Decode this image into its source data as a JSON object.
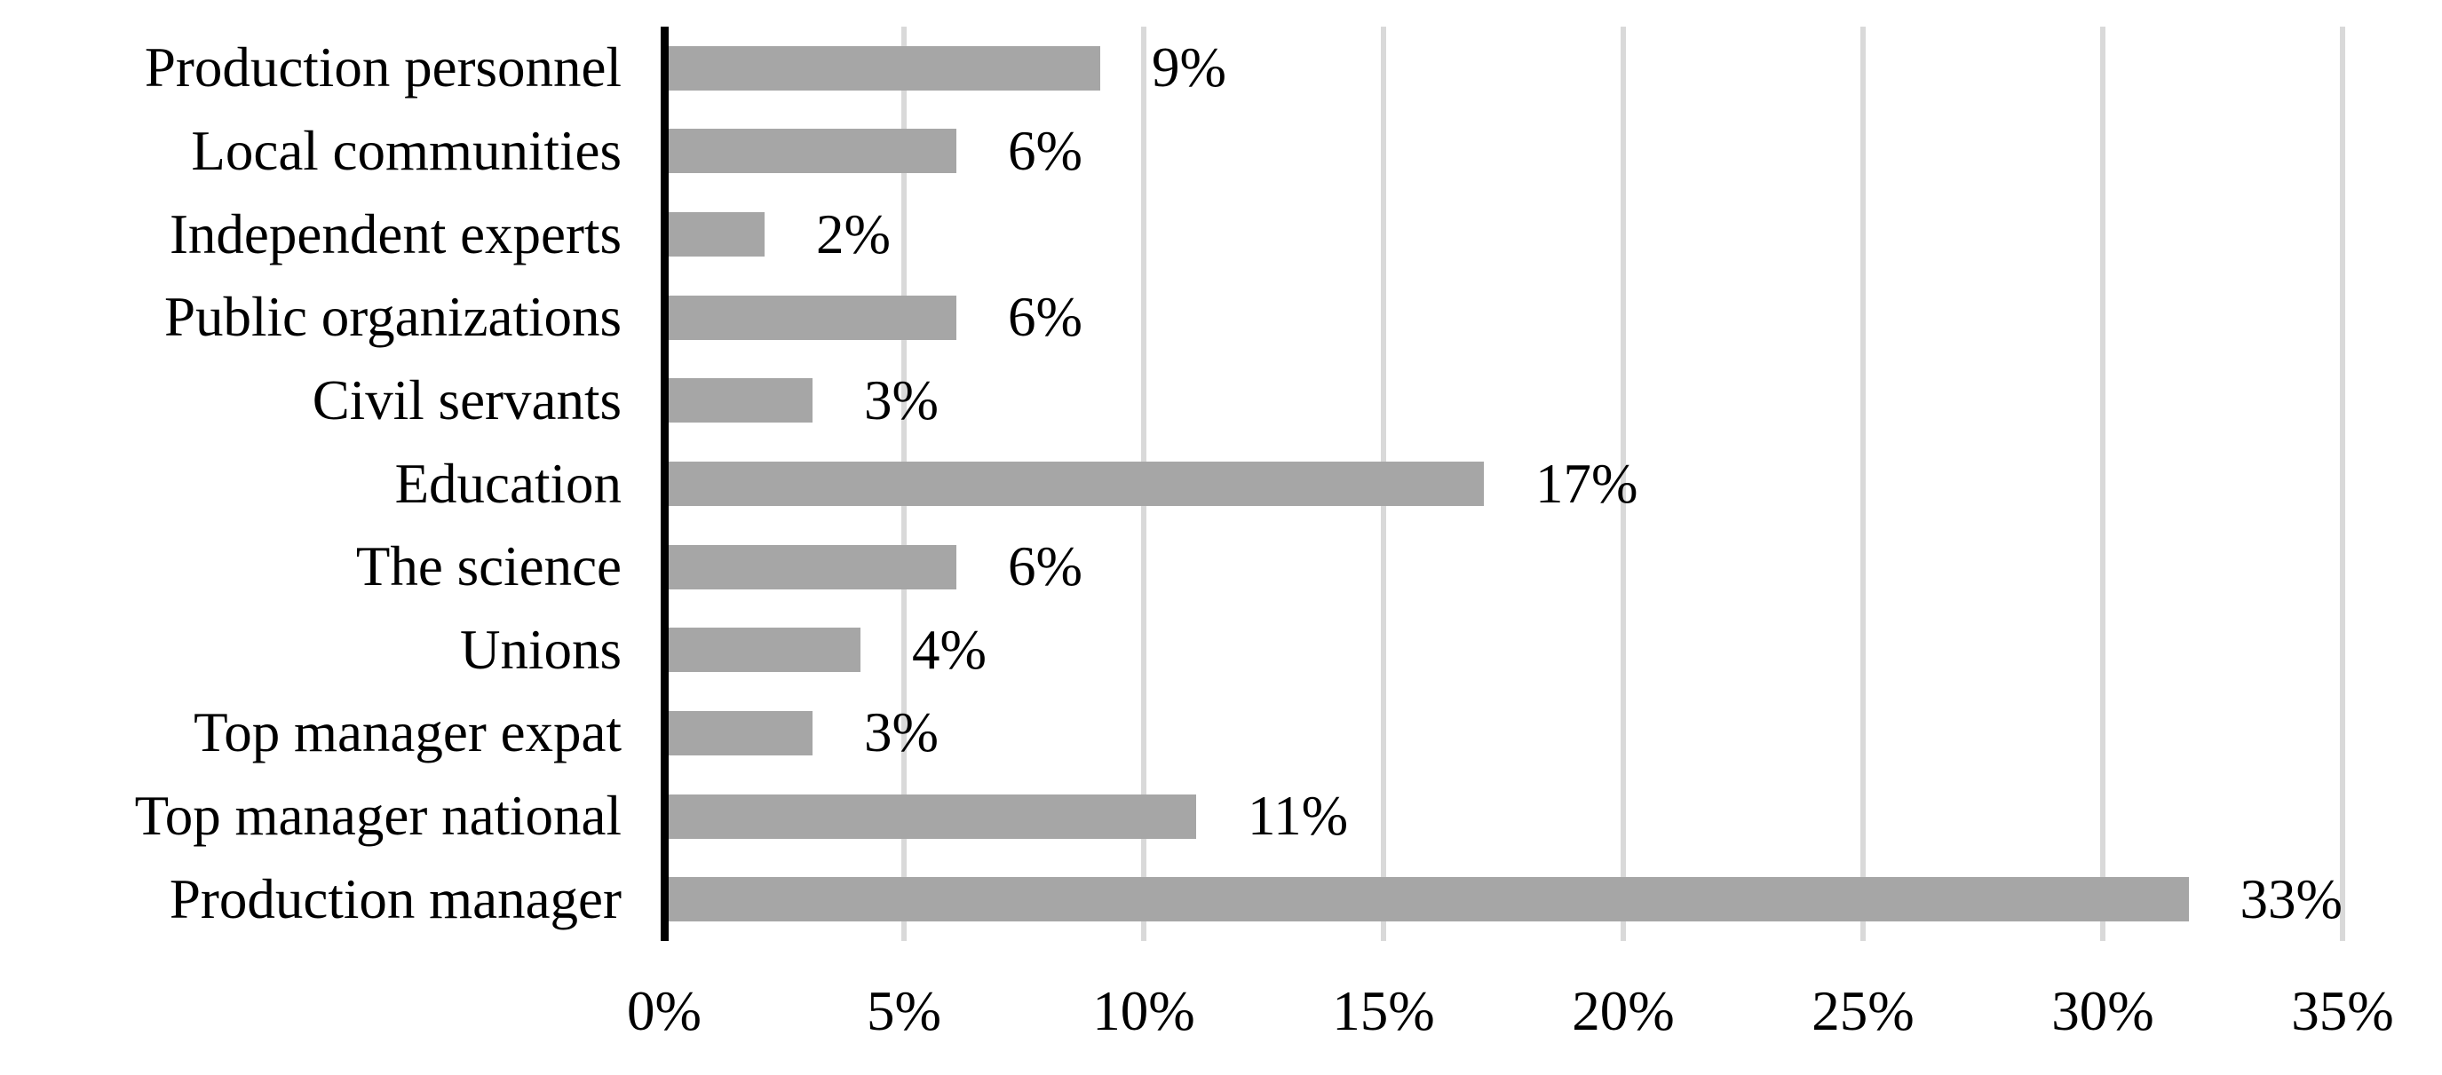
{
  "chart_data": {
    "type": "bar",
    "orientation": "horizontal",
    "title": "",
    "xlabel": "",
    "ylabel": "",
    "categories": [
      "Production personnel",
      "Local communities",
      "Independent experts",
      "Public organizations",
      "Civil servants",
      "Education",
      "The science",
      "Unions",
      "Top manager expat",
      "Top manager national",
      "Production manager"
    ],
    "values": [
      9,
      6,
      2,
      6,
      3,
      17,
      6,
      4,
      3,
      11,
      33
    ],
    "value_labels": [
      "9%",
      "6%",
      "2%",
      "6%",
      "3%",
      "17%",
      "6%",
      "4%",
      "3%",
      "11%",
      "33%"
    ],
    "x_tick_labels": [
      "0%",
      "5%",
      "10%",
      "15%",
      "20%",
      "25%",
      "30%",
      "35%"
    ],
    "xlim": [
      0,
      35
    ],
    "x_tick_step": 5,
    "grid": "vertical",
    "legend": "none",
    "colors": {
      "bar": "#a6a6a6",
      "gridline": "#d9d9d9",
      "axis": "#000000",
      "text": "#000000",
      "background": "#ffffff"
    }
  }
}
